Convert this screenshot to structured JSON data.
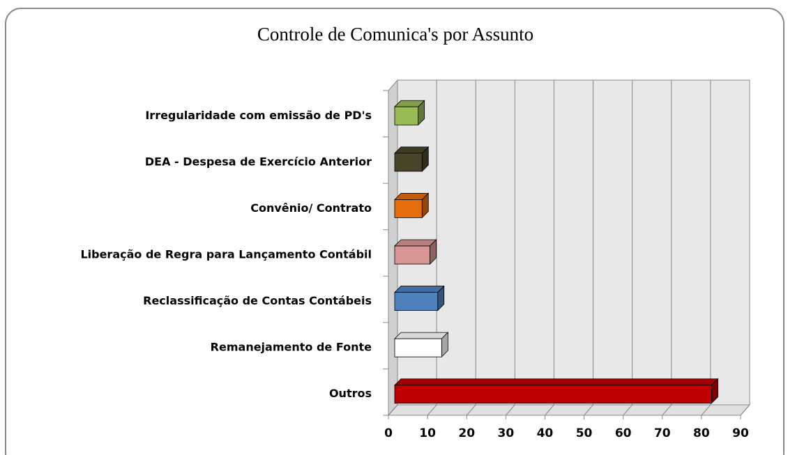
{
  "chart_data": {
    "type": "bar3d_horizontal",
    "title": "Controle de Comunica's por Assunto",
    "categories": [
      "Irregularidade com emissão de PD's",
      "DEA - Despesa de Exercício Anterior",
      "Convênio/ Contrato",
      "Liberação de Regra para Lançamento Contábil",
      "Reclassificação de Contas Contábeis",
      "Remanejamento de Fonte",
      "Outros"
    ],
    "values": [
      6,
      7,
      7,
      9,
      11,
      12,
      81
    ],
    "colors": [
      "#9bbb59",
      "#4a452a",
      "#e46c0a",
      "#d99694",
      "#4f81bd",
      "#ffffff",
      "#c00000"
    ],
    "xlim": [
      0,
      90
    ],
    "xticks": [
      0,
      10,
      20,
      30,
      40,
      50,
      60,
      70,
      80,
      90
    ],
    "grid": true
  }
}
